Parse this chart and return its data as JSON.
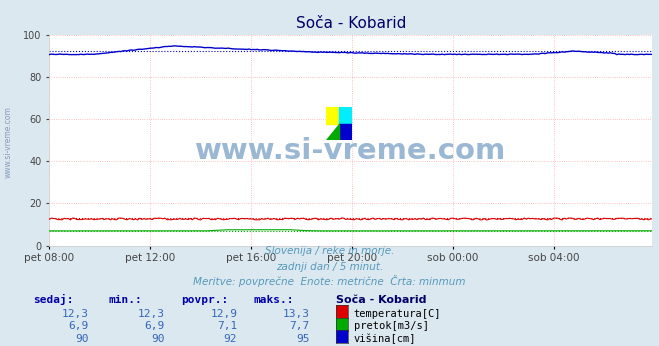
{
  "title": "Soča - Kobarid",
  "bg_color": "#dce8f0",
  "plot_bg_color": "#ffffff",
  "grid_color": "#ffaaaa",
  "grid_linestyle": ":",
  "xlabel_ticks": [
    "pet 08:00",
    "pet 12:00",
    "pet 16:00",
    "pet 20:00",
    "sob 00:00",
    "sob 04:00"
  ],
  "yticks": [
    0,
    20,
    40,
    60,
    80,
    100
  ],
  "ylim": [
    0,
    100
  ],
  "n_points": 288,
  "temp_avg": 12.9,
  "pretok_avg": 7.1,
  "visina_avg": 92,
  "temp_color": "#dd0000",
  "pretok_color": "#00aa00",
  "visina_color": "#0000cc",
  "watermark_text": "www.si-vreme.com",
  "watermark_color": "#9ab8d4",
  "subtitle1": "Slovenija / reke in morje.",
  "subtitle2": "zadnji dan / 5 minut.",
  "subtitle3": "Meritve: povprečne  Enote: metrične  Črta: minmum",
  "subtitle_color": "#5599bb",
  "table_header_color": "#0000aa",
  "table_value_color": "#3366bb",
  "legend_title": "Soča - Kobarid",
  "legend_title_color": "#000066",
  "sedaj": [
    "12,3",
    "6,9",
    "90"
  ],
  "min_vals": [
    "12,3",
    "6,9",
    "90"
  ],
  "povpr_vals": [
    "12,9",
    "7,1",
    "92"
  ],
  "maks_vals": [
    "13,3",
    "7,7",
    "95"
  ],
  "legend_labels": [
    "temperatura[C]",
    "pretok[m3/s]",
    "višina[cm]"
  ],
  "legend_colors": [
    "#dd0000",
    "#00aa00",
    "#0000cc"
  ]
}
